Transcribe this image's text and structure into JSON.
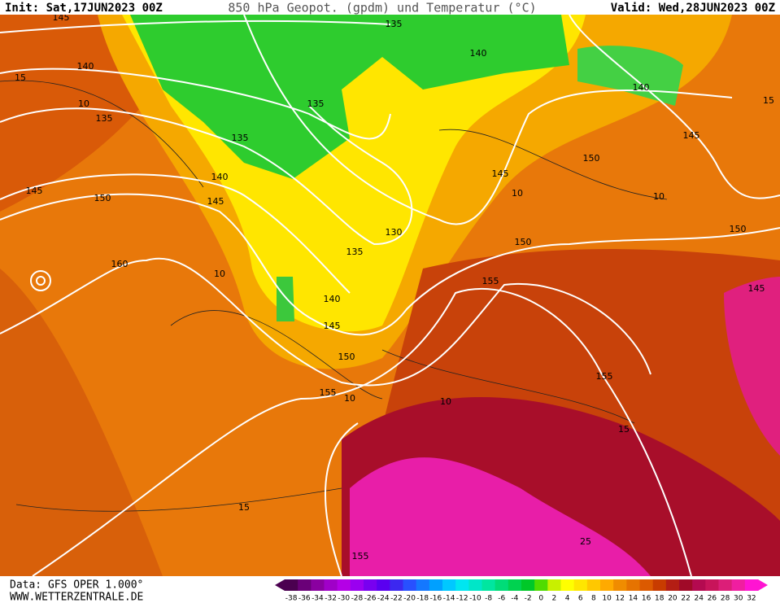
{
  "header": {
    "init": "Init: Sat,17JUN2023 00Z",
    "title": "850 hPa Geopot. (gpdm) und Temperatur (°C)",
    "valid": "Valid: Wed,28JUN2023 00Z"
  },
  "footer": {
    "data": "Data: GFS OPER 1.000°",
    "site": "WWW.WETTERZENTRALE.DE"
  },
  "map": {
    "contour_labels": [
      "145",
      "135",
      "140",
      "140",
      "15",
      "10",
      "135",
      "135",
      "140",
      "15",
      "145",
      "135",
      "140",
      "150",
      "145",
      "145",
      "150",
      "145",
      "10",
      "10",
      "130",
      "150",
      "150",
      "135",
      "160",
      "10",
      "155",
      "145",
      "140",
      "145",
      "150",
      "155",
      "155",
      "10",
      "10",
      "15",
      "15",
      "25",
      "155"
    ]
  },
  "colorbar": {
    "labels": [
      -38,
      -36,
      -34,
      -32,
      -30,
      -28,
      -26,
      -24,
      -22,
      -20,
      -18,
      -16,
      -14,
      -12,
      -10,
      -8,
      -6,
      -4,
      -2,
      0,
      2,
      4,
      6,
      8,
      10,
      12,
      14,
      16,
      18,
      20,
      22,
      24,
      26,
      28,
      30,
      32
    ],
    "colors": [
      "#4b0050",
      "#6a0078",
      "#8a00a0",
      "#a000c8",
      "#b400e6",
      "#9a00f0",
      "#7800f0",
      "#5a00f0",
      "#3c28f0",
      "#2850ff",
      "#1478ff",
      "#00a0ff",
      "#00c8ff",
      "#00e6f0",
      "#00e6c8",
      "#00e6a0",
      "#00dc78",
      "#00d250",
      "#00c828",
      "#50dc00",
      "#c8f000",
      "#ffff00",
      "#ffe600",
      "#ffc800",
      "#ffaa00",
      "#f08c00",
      "#e67300",
      "#dc5a00",
      "#c83c00",
      "#b41e14",
      "#a00a28",
      "#b40a50",
      "#c8145a",
      "#dc1e78",
      "#f01ea0",
      "#ff14d2"
    ]
  }
}
